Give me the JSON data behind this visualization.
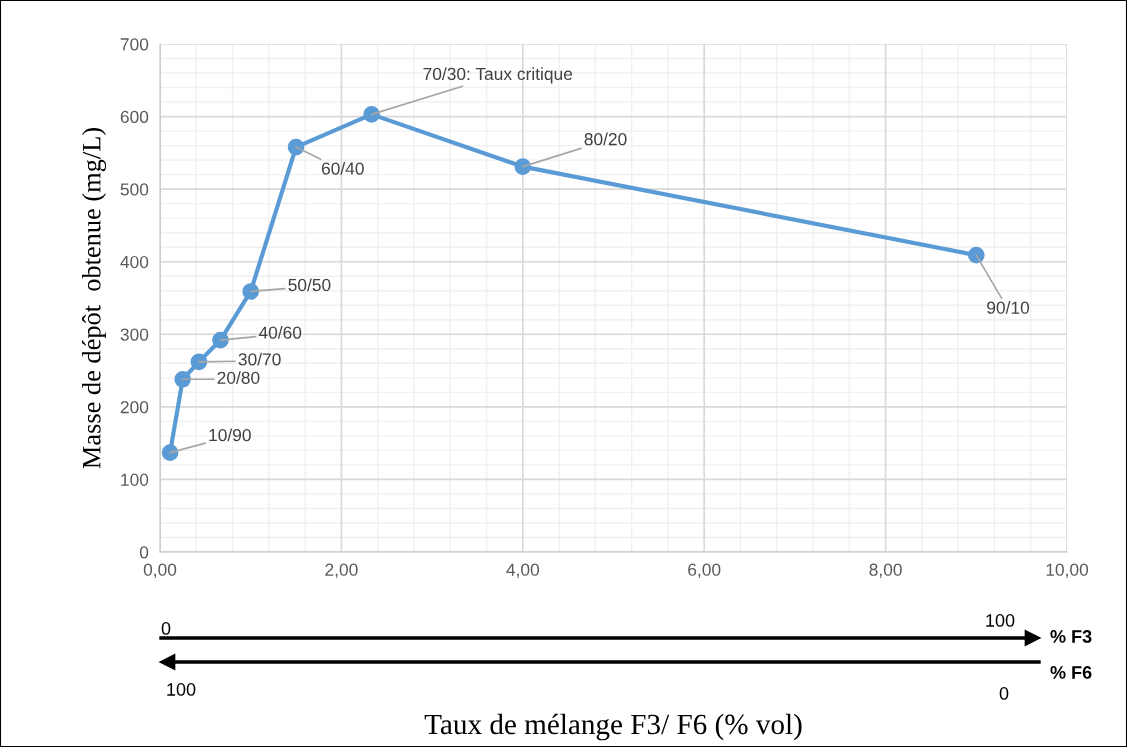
{
  "chart_data": {
    "type": "line",
    "xlabel": "Taux de mélange F3/ F6 (% vol)",
    "ylabel": "Masse de dépôt  obtenue (mg/L)",
    "x": [
      0.111,
      0.25,
      0.429,
      0.667,
      1.0,
      1.5,
      2.333,
      4.0,
      9.0
    ],
    "series": [
      {
        "color": "#5b9bd5",
        "values": [
          137,
          238,
          262,
          292,
          359,
          558,
          603,
          531,
          409
        ]
      }
    ],
    "marker": "circle",
    "line_style": "solid",
    "xlim": [
      0,
      10
    ],
    "ylim": [
      0,
      700
    ],
    "xticks": [
      {
        "value": 0,
        "label": "0,00"
      },
      {
        "value": 2,
        "label": "2,00"
      },
      {
        "value": 4,
        "label": "4,00"
      },
      {
        "value": 6,
        "label": "6,00"
      },
      {
        "value": 8,
        "label": "8,00"
      },
      {
        "value": 10,
        "label": "10,00"
      }
    ],
    "yticks": [
      0,
      100,
      200,
      300,
      400,
      500,
      600,
      700
    ],
    "grid": true,
    "annotations": [
      {
        "text": "10/90",
        "x": 0.111,
        "y": 137
      },
      {
        "text": "20/80",
        "x": 0.25,
        "y": 238
      },
      {
        "text": "30/70",
        "x": 0.429,
        "y": 262
      },
      {
        "text": "40/60",
        "x": 0.667,
        "y": 292
      },
      {
        "text": "50/50",
        "x": 1.0,
        "y": 359
      },
      {
        "text": "60/40",
        "x": 1.5,
        "y": 558
      },
      {
        "text": "70/30: Taux critique",
        "x": 2.333,
        "y": 603
      },
      {
        "text": "80/20",
        "x": 4.0,
        "y": 531
      },
      {
        "text": "90/10",
        "x": 9.0,
        "y": 409
      },
      "0",
      "100",
      "% F3",
      "100",
      "0",
      "% F6"
    ]
  }
}
